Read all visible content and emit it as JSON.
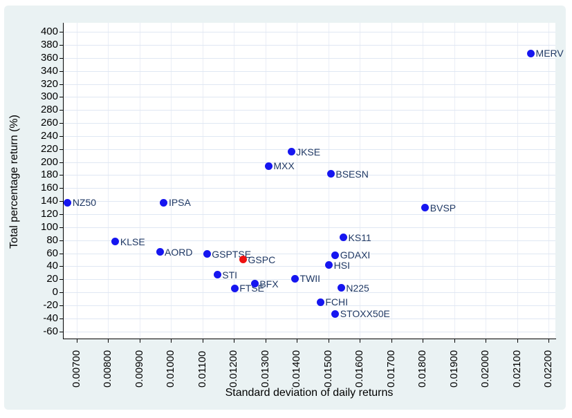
{
  "chart_data": {
    "type": "scatter",
    "title": "",
    "xlabel": "Standard deviation of daily returns",
    "ylabel": "Total percentage return (%)",
    "xlim": [
      0.00656,
      0.02222
    ],
    "ylim": [
      -71,
      414
    ],
    "x_ticks": [
      0.007,
      0.008,
      0.009,
      0.01,
      0.011,
      0.012,
      0.013,
      0.014,
      0.015,
      0.016,
      0.017,
      0.018,
      0.019,
      0.02,
      0.021,
      0.022
    ],
    "x_tick_labels": [
      "0.00700",
      "0.00800",
      "0.00900",
      "0.01000",
      "0.01100",
      "0.01200",
      "0.01300",
      "0.01400",
      "0.01500",
      "0.01600",
      "0.01700",
      "0.01800",
      "0.01900",
      "0.02000",
      "0.02100",
      "0.02200"
    ],
    "y_ticks": [
      400,
      380,
      360,
      340,
      320,
      300,
      280,
      260,
      240,
      220,
      200,
      180,
      160,
      140,
      120,
      100,
      80,
      60,
      40,
      20,
      0,
      -20,
      -40,
      -60
    ],
    "grid": true,
    "legend_position": "none",
    "points": [
      {
        "label": "NZ50",
        "x": 0.00671,
        "y": 138,
        "color": "blue"
      },
      {
        "label": "KLSE",
        "x": 0.00823,
        "y": 78,
        "color": "blue"
      },
      {
        "label": "AORD",
        "x": 0.00964,
        "y": 62,
        "color": "blue"
      },
      {
        "label": "IPSA",
        "x": 0.00977,
        "y": 138,
        "color": "blue"
      },
      {
        "label": "GSPTSE",
        "x": 0.01114,
        "y": 59,
        "color": "blue"
      },
      {
        "label": "STI",
        "x": 0.01147,
        "y": 27,
        "color": "blue"
      },
      {
        "label": "FTSE",
        "x": 0.01202,
        "y": 6,
        "color": "blue"
      },
      {
        "label": "GSPC",
        "x": 0.01229,
        "y": 50,
        "color": "red"
      },
      {
        "label": "BFX",
        "x": 0.01266,
        "y": 13,
        "color": "blue"
      },
      {
        "label": "MXX",
        "x": 0.0131,
        "y": 194,
        "color": "blue"
      },
      {
        "label": "JKSE",
        "x": 0.01382,
        "y": 216,
        "color": "blue"
      },
      {
        "label": "TWII",
        "x": 0.01394,
        "y": 21,
        "color": "blue"
      },
      {
        "label": "FCHI",
        "x": 0.01475,
        "y": -15,
        "color": "blue"
      },
      {
        "label": "HSI",
        "x": 0.01502,
        "y": 42,
        "color": "blue"
      },
      {
        "label": "BSESN",
        "x": 0.01508,
        "y": 182,
        "color": "blue"
      },
      {
        "label": "GDAXI",
        "x": 0.01522,
        "y": 57,
        "color": "blue"
      },
      {
        "label": "STOXX50E",
        "x": 0.01522,
        "y": -33,
        "color": "blue"
      },
      {
        "label": "N225",
        "x": 0.01541,
        "y": 7,
        "color": "blue"
      },
      {
        "label": "KS11",
        "x": 0.01548,
        "y": 84,
        "color": "blue"
      },
      {
        "label": "BVSP",
        "x": 0.01808,
        "y": 130,
        "color": "blue"
      },
      {
        "label": "MERV",
        "x": 0.02144,
        "y": 367,
        "color": "blue"
      }
    ]
  },
  "colors": {
    "background": "#eaf2f3",
    "plot_background": "#ffffff",
    "grid_horizontal": "#dfe7f3",
    "grid_vertical": "#eaeef6",
    "axis": "#000000",
    "tick_label": "#000000",
    "point_blue": "#1616f0",
    "point_red": "#ee1111",
    "marker_label": "#1f3864"
  }
}
